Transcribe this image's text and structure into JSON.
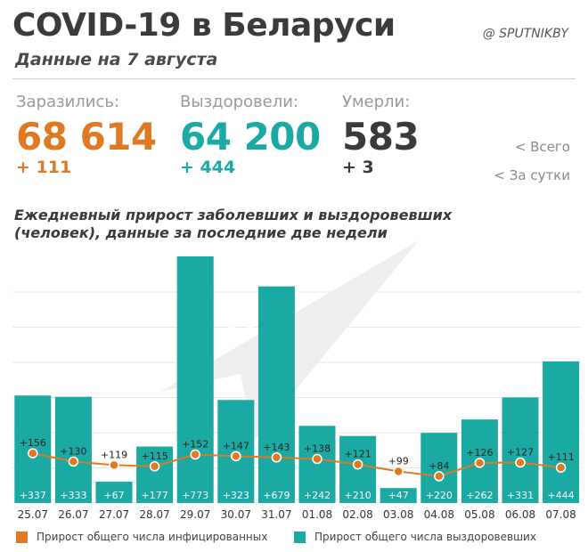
{
  "header": {
    "title": "COVID-19 в Беларуси",
    "subtitle": "Данные на 7 августа",
    "brand": "@ SPUTNIKBY"
  },
  "stats": [
    {
      "label": "Заразились:",
      "value": "68 614",
      "delta": "+ 111",
      "color": "#e07a22"
    },
    {
      "label": "Выздоровели:",
      "value": "64 200",
      "delta": "+ 444",
      "color": "#1ba9a3"
    },
    {
      "label": "Умерли:",
      "value": "583",
      "delta": "+ 3",
      "color": "#3a3a3a"
    }
  ],
  "side_legend": {
    "total": "<  Всего",
    "daily": "<  За сутки"
  },
  "watermark": "SPUTNIK",
  "chart_data": {
    "type": "bar",
    "title": "Ежедневный прирост заболевших и выздоровевших (человек), данные за последние две недели",
    "categories": [
      "25.07",
      "26.07",
      "27.07",
      "28.07",
      "29.07",
      "30.07",
      "31.07",
      "01.08",
      "02.08",
      "03.08",
      "04.08",
      "05.08",
      "06.08",
      "07.08"
    ],
    "series": [
      {
        "name": "Прирост общего числа выздоровевших",
        "type": "bar",
        "color": "#1ba9a3",
        "values": [
          337,
          333,
          67,
          177,
          773,
          323,
          679,
          242,
          210,
          47,
          220,
          262,
          331,
          444
        ],
        "labels": [
          "+337",
          "+333",
          "+67",
          "+177",
          "+773",
          "+323",
          "+679",
          "+242",
          "+210",
          "+47",
          "+220",
          "+262",
          "+331",
          "+444"
        ]
      },
      {
        "name": "Прирост общего числа инфицированных",
        "type": "line",
        "color": "#e07a22",
        "values": [
          156,
          130,
          119,
          115,
          152,
          147,
          143,
          138,
          121,
          99,
          84,
          126,
          127,
          111
        ],
        "labels": [
          "+156",
          "+130",
          "+119",
          "+115",
          "+152",
          "+147",
          "+143",
          "+138",
          "+121",
          "+99",
          "+84",
          "+126",
          "+127",
          "+111"
        ]
      }
    ],
    "ylim": [
      0,
      800
    ],
    "grid": true
  },
  "legend": {
    "infected": "Прирост общего числа инфицированных",
    "recovered": "Прирост общего числа выздоровевших"
  }
}
